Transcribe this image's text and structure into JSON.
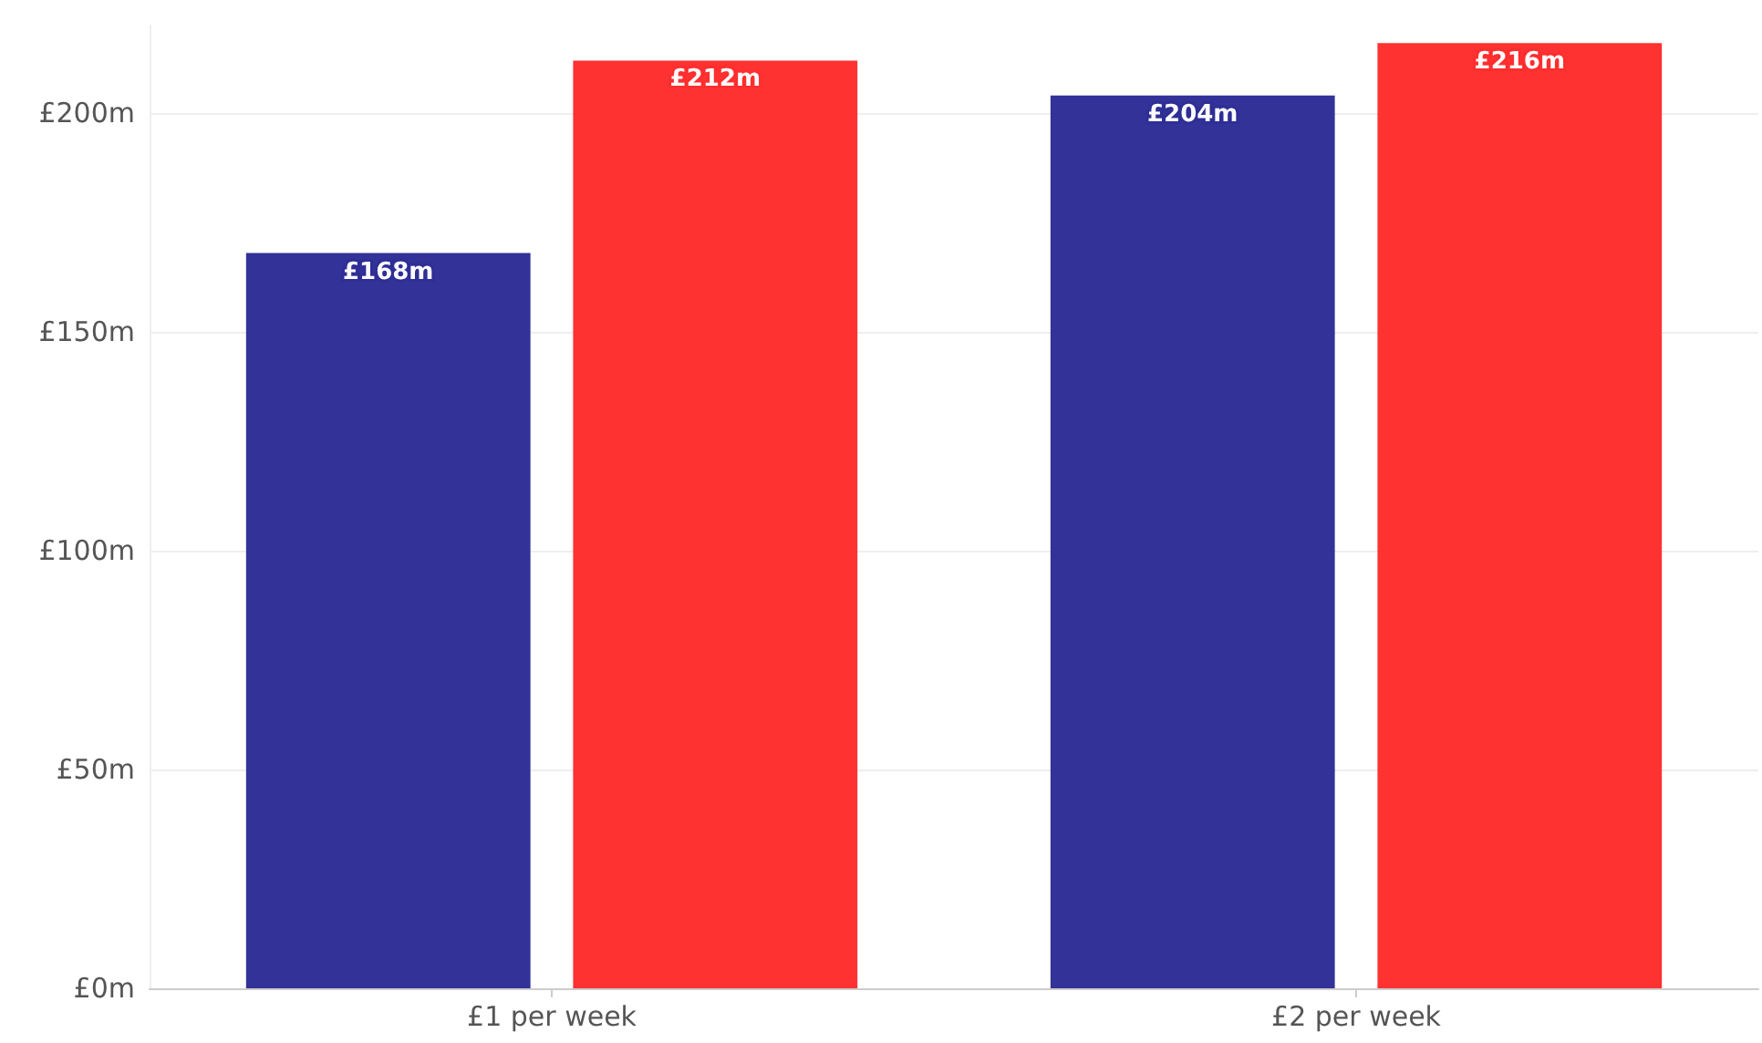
{
  "chart_data": {
    "type": "bar",
    "categories": [
      "£1 per week",
      "£2 per week"
    ],
    "series": [
      {
        "color": "#2e2e96",
        "values": [
          168,
          204
        ],
        "value_labels": [
          "£168m",
          "£204m"
        ]
      },
      {
        "color": "#ff2e2e",
        "values": [
          212,
          216
        ],
        "value_labels": [
          "£212m",
          "£216m"
        ]
      }
    ],
    "ylim": [
      0,
      220
    ],
    "yticks": [
      {
        "value": 0,
        "label": "£0m"
      },
      {
        "value": 50,
        "label": "£50m"
      },
      {
        "value": 100,
        "label": "£100m"
      },
      {
        "value": 150,
        "label": "£150m"
      },
      {
        "value": 200,
        "label": "£200m"
      }
    ],
    "grid": "y"
  }
}
